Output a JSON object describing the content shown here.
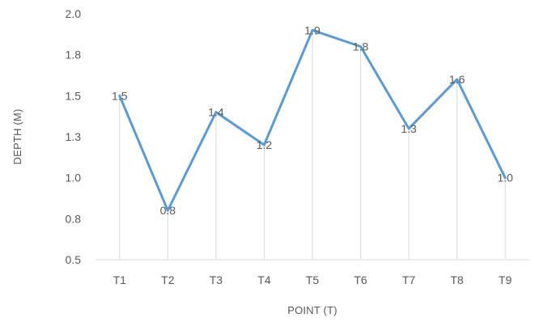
{
  "chart_data": {
    "type": "line",
    "title": "",
    "xlabel": "POINT (T)",
    "ylabel": "DEPTH (M)",
    "categories": [
      "T1",
      "T2",
      "T3",
      "T4",
      "T5",
      "T6",
      "T7",
      "T8",
      "T9"
    ],
    "series": [
      {
        "values": [
          1.5,
          0.8,
          1.4,
          1.2,
          1.9,
          1.8,
          1.3,
          1.6,
          1.0
        ],
        "value_labels": [
          "1.5",
          "0.8",
          "1.4",
          "1.2",
          "1.9",
          "1.8",
          "1.3",
          "1.6",
          "1.0"
        ],
        "color": "#5b9bd5"
      }
    ],
    "ylim": [
      0.5,
      2.0
    ],
    "yticks": [
      {
        "value": 0.5,
        "label": "0.5"
      },
      {
        "value": 0.75,
        "label": "0.8"
      },
      {
        "value": 1.0,
        "label": "1.0"
      },
      {
        "value": 1.25,
        "label": "1.3"
      },
      {
        "value": 1.5,
        "label": "1.5"
      },
      {
        "value": 1.75,
        "label": "1.8"
      },
      {
        "value": 2.0,
        "label": "2.0"
      }
    ],
    "grid": false,
    "drop_lines": true,
    "legend": "none"
  }
}
